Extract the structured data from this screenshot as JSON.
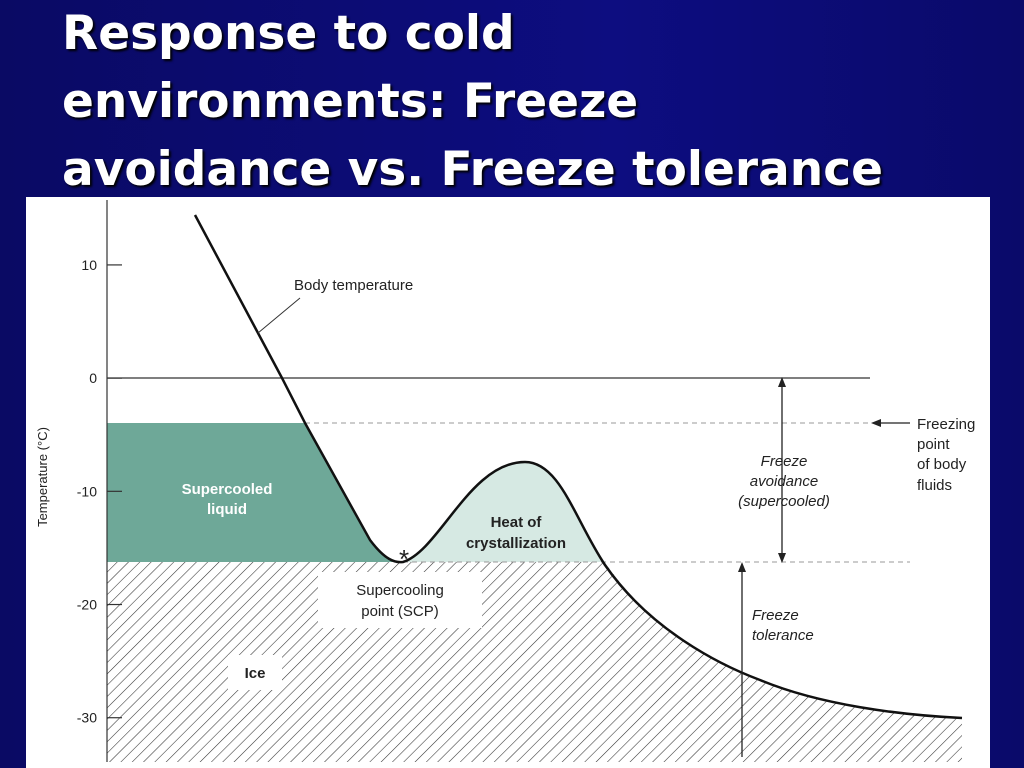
{
  "title": [
    "Response to cold",
    "environments: Freeze",
    "avoidance vs. Freeze tolerance"
  ],
  "figure": {
    "y_label": "Temperature (°C)",
    "ylim": [
      -34,
      16
    ],
    "yticks": [
      10,
      0,
      -10,
      -20,
      -30
    ],
    "labels": {
      "body_temperature": "Body temperature",
      "supercooled_liquid": [
        "Supercooled",
        "liquid"
      ],
      "heat_of_crystallization": [
        "Heat of",
        "crystallization"
      ],
      "supercooling_point": [
        "Supercooling",
        "point (SCP)"
      ],
      "ice": "Ice",
      "freeze_avoidance": [
        "Freeze",
        "avoidance",
        "(supercooled)"
      ],
      "freeze_tolerance": [
        "Freeze",
        "tolerance"
      ],
      "freezing_point": [
        "Freezing",
        "point",
        "of body",
        "fluids"
      ]
    }
  }
}
